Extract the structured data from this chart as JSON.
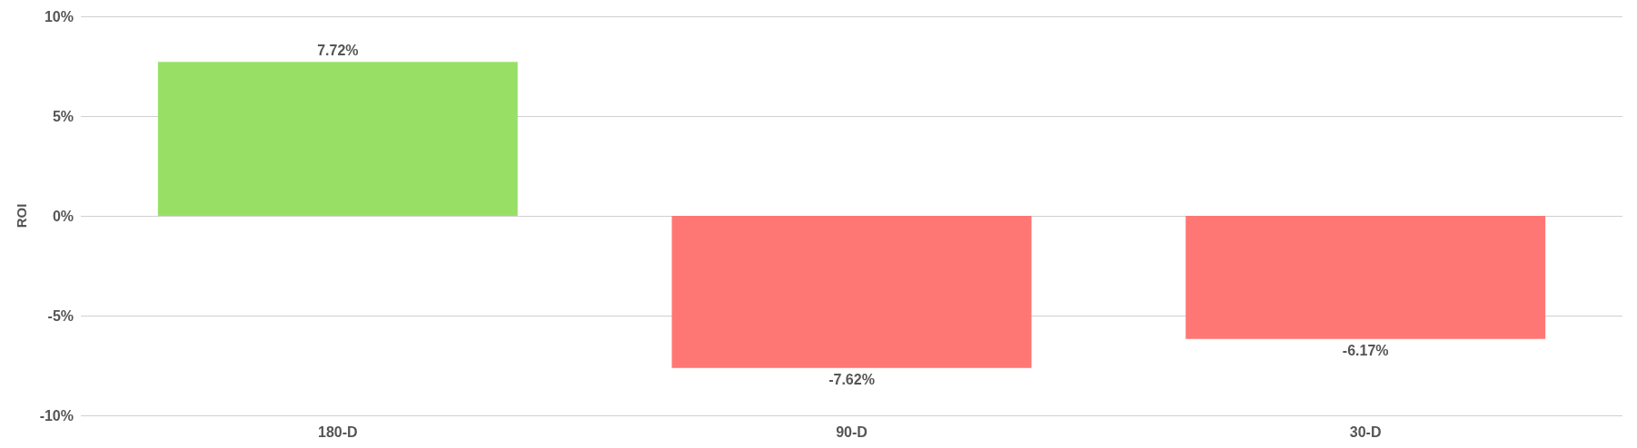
{
  "chart_data": {
    "type": "bar",
    "ylabel": "ROI",
    "categories": [
      "180-D",
      "90-D",
      "30-D"
    ],
    "values": [
      7.72,
      -7.62,
      -6.17
    ],
    "colors": [
      "#98e065",
      "#ff7775",
      "#ff7775"
    ],
    "value_labels": [
      "7.72%",
      "-7.62%",
      "-6.17%"
    ],
    "ylim": [
      -10,
      10
    ],
    "yticks": [
      {
        "value": -10,
        "label": "-10%"
      },
      {
        "value": -5,
        "label": "-5%"
      },
      {
        "value": 0,
        "label": "0%"
      },
      {
        "value": 5,
        "label": "5%"
      },
      {
        "value": 10,
        "label": "10%"
      }
    ],
    "grid": true
  }
}
